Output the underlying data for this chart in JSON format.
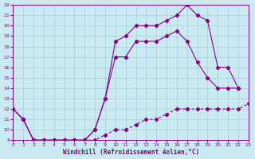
{
  "xlabel": "Windchill (Refroidissement éolien,°C)",
  "bg_color": "#c8eaf0",
  "line_color": "#880088",
  "grid_color": "#a8ccd8",
  "xlim": [
    0,
    23
  ],
  "ylim": [
    9,
    22
  ],
  "yticks": [
    9,
    10,
    11,
    12,
    13,
    14,
    15,
    16,
    17,
    18,
    19,
    20,
    21,
    22
  ],
  "xticks": [
    0,
    1,
    2,
    3,
    4,
    5,
    6,
    7,
    8,
    9,
    10,
    11,
    12,
    13,
    14,
    15,
    16,
    17,
    18,
    19,
    20,
    21,
    22,
    23
  ],
  "line1_x": [
    0,
    1,
    2,
    3,
    4,
    5,
    6,
    7,
    8,
    9,
    10,
    11,
    12,
    13,
    14,
    15,
    16,
    17,
    18,
    19,
    20,
    21,
    22,
    23
  ],
  "line1_y": [
    12,
    11,
    9,
    9,
    9,
    9,
    9,
    9,
    9,
    9.5,
    10,
    10,
    10.5,
    11,
    11,
    11.5,
    12,
    12,
    12,
    12,
    12,
    12,
    12,
    12.5
  ],
  "line2_x": [
    0,
    1,
    2,
    3,
    4,
    5,
    6,
    7,
    8,
    9,
    10,
    11,
    12,
    13,
    14,
    15,
    16,
    17,
    18,
    19,
    20,
    21,
    22
  ],
  "line2_y": [
    12,
    11,
    9,
    9,
    9,
    9,
    9,
    9,
    10,
    13,
    17,
    17,
    18.5,
    18.5,
    18.5,
    19,
    19.5,
    18.5,
    16.5,
    15,
    14,
    14,
    14
  ],
  "line3_x": [
    0,
    1,
    2,
    3,
    4,
    5,
    6,
    7,
    8,
    9,
    10,
    11,
    12,
    13,
    14,
    15,
    16,
    17,
    18,
    19,
    20,
    21,
    22
  ],
  "line3_y": [
    12,
    11,
    9,
    9,
    9,
    9,
    9,
    9,
    10,
    13,
    18.5,
    19,
    20,
    20,
    20,
    20.5,
    21,
    22,
    21,
    20.5,
    16,
    16,
    14
  ]
}
